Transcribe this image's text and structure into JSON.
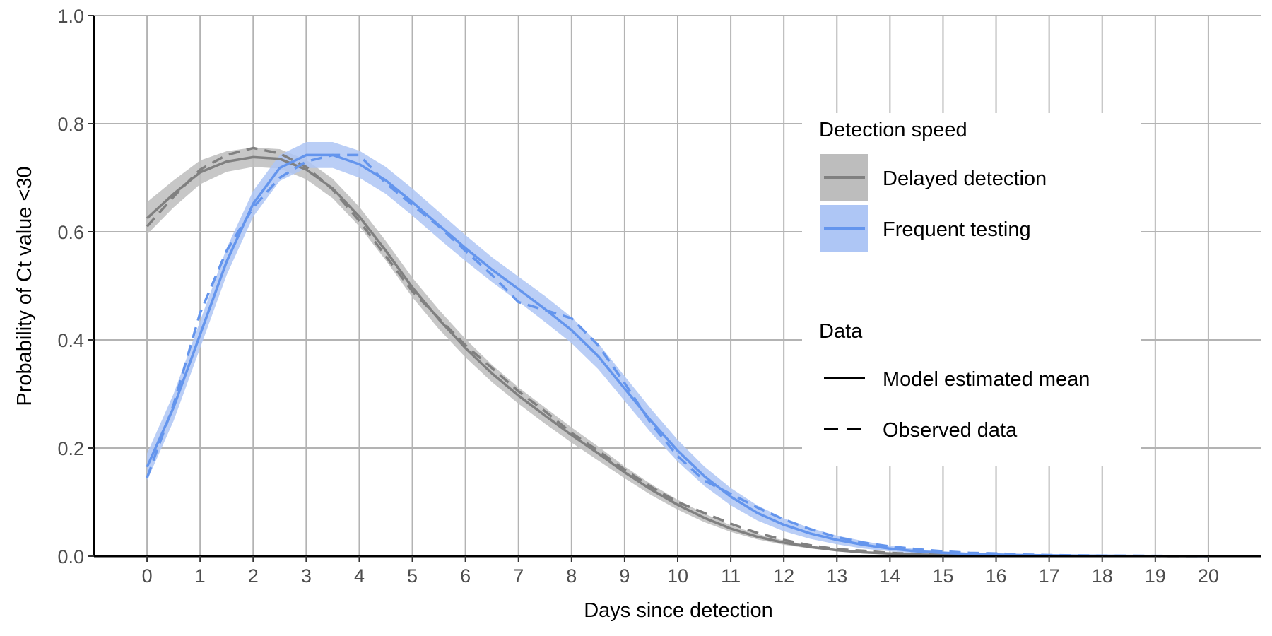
{
  "chart_data": {
    "type": "line",
    "xlabel": "Days since detection",
    "ylabel": "Probability of Ct value <30",
    "xlim": [
      -1,
      21
    ],
    "ylim": [
      0,
      1.0
    ],
    "x_ticks": [
      0,
      1,
      2,
      3,
      4,
      5,
      6,
      7,
      8,
      9,
      10,
      11,
      12,
      13,
      14,
      15,
      16,
      17,
      18,
      19,
      20
    ],
    "x_tick_labels": [
      "0",
      "1",
      "2",
      "3",
      "4",
      "5",
      "6",
      "7",
      "8",
      "9",
      "10",
      "11",
      "12",
      "13",
      "14",
      "15",
      "16",
      "17",
      "18",
      "19",
      "20"
    ],
    "y_ticks": [
      0,
      0.2,
      0.4,
      0.6,
      0.8,
      1.0
    ],
    "y_tick_labels": [
      "0.0",
      "0.2",
      "0.4",
      "0.6",
      "0.8",
      "1.0"
    ],
    "grid": true,
    "legend_position": "right",
    "x": [
      0,
      0.5,
      1,
      1.5,
      2,
      2.5,
      3,
      3.5,
      4,
      4.5,
      5,
      5.5,
      6,
      6.5,
      7,
      7.5,
      8,
      8.5,
      9,
      9.5,
      10,
      10.5,
      11,
      11.5,
      12,
      12.5,
      13,
      13.5,
      14,
      14.5,
      15,
      15.5,
      16,
      16.5,
      17,
      17.5,
      18,
      18.5,
      19,
      19.5,
      20
    ],
    "series": [
      {
        "name": "Delayed detection",
        "color": "#808080",
        "band_color": "#bdbdbd",
        "mean": [
          0.625,
          0.67,
          0.71,
          0.73,
          0.738,
          0.735,
          0.715,
          0.68,
          0.628,
          0.565,
          0.497,
          0.438,
          0.385,
          0.338,
          0.297,
          0.26,
          0.224,
          0.19,
          0.155,
          0.123,
          0.095,
          0.071,
          0.051,
          0.036,
          0.025,
          0.017,
          0.011,
          0.007,
          0.005,
          0.003,
          0.002,
          0.0015,
          0.001,
          0.0008,
          0.0006,
          0.0004,
          0.0003,
          0.0002,
          0.0002,
          0.0001,
          0.0001
        ],
        "lower": [
          0.595,
          0.645,
          0.688,
          0.711,
          0.72,
          0.717,
          0.697,
          0.662,
          0.61,
          0.547,
          0.479,
          0.42,
          0.368,
          0.322,
          0.282,
          0.245,
          0.21,
          0.177,
          0.144,
          0.113,
          0.086,
          0.063,
          0.045,
          0.031,
          0.021,
          0.014,
          0.009,
          0.005,
          0.003,
          0.002,
          0.001,
          0.001,
          0.0005,
          0.0003,
          0.0002,
          0.0001,
          0.0001,
          0.0,
          0.0,
          0.0,
          0.0
        ],
        "upper": [
          0.655,
          0.695,
          0.732,
          0.749,
          0.756,
          0.753,
          0.733,
          0.698,
          0.646,
          0.583,
          0.515,
          0.456,
          0.402,
          0.354,
          0.312,
          0.275,
          0.238,
          0.203,
          0.166,
          0.133,
          0.104,
          0.079,
          0.057,
          0.041,
          0.029,
          0.02,
          0.013,
          0.009,
          0.006,
          0.004,
          0.003,
          0.002,
          0.0015,
          0.0012,
          0.001,
          0.0007,
          0.0005,
          0.0004,
          0.0003,
          0.0002,
          0.0002
        ],
        "observed": [
          0.61,
          0.665,
          0.715,
          0.742,
          0.755,
          0.745,
          0.72,
          0.678,
          0.62,
          0.555,
          0.49,
          0.44,
          0.39,
          0.348,
          0.305,
          0.268,
          0.228,
          0.195,
          0.16,
          0.128,
          0.1,
          0.08,
          0.06,
          0.043,
          0.03,
          0.02,
          0.013,
          0.01,
          0.006,
          0.004,
          0.003,
          0.002,
          0.002,
          0.001,
          0.001,
          0.0008,
          0.0005,
          0.0003,
          0.0002,
          0.0001,
          0.0001
        ]
      },
      {
        "name": "Frequent testing",
        "color": "#6495ED",
        "band_color": "#aec6f5",
        "mean": [
          0.165,
          0.275,
          0.41,
          0.545,
          0.652,
          0.718,
          0.742,
          0.742,
          0.725,
          0.695,
          0.655,
          0.612,
          0.57,
          0.53,
          0.494,
          0.457,
          0.418,
          0.37,
          0.31,
          0.25,
          0.195,
          0.148,
          0.11,
          0.08,
          0.058,
          0.042,
          0.03,
          0.021,
          0.014,
          0.009,
          0.006,
          0.004,
          0.003,
          0.002,
          0.0015,
          0.001,
          0.0008,
          0.0005,
          0.0003,
          0.0002,
          0.0001
        ],
        "lower": [
          0.14,
          0.25,
          0.385,
          0.52,
          0.628,
          0.694,
          0.718,
          0.718,
          0.7,
          0.67,
          0.63,
          0.587,
          0.546,
          0.507,
          0.471,
          0.433,
          0.394,
          0.346,
          0.287,
          0.228,
          0.175,
          0.13,
          0.094,
          0.066,
          0.046,
          0.032,
          0.022,
          0.014,
          0.009,
          0.005,
          0.003,
          0.002,
          0.001,
          0.001,
          0.0005,
          0.0003,
          0.0002,
          0.0001,
          0.0,
          0.0,
          0.0
        ],
        "upper": [
          0.19,
          0.3,
          0.435,
          0.57,
          0.676,
          0.742,
          0.766,
          0.766,
          0.75,
          0.72,
          0.68,
          0.637,
          0.594,
          0.553,
          0.517,
          0.481,
          0.442,
          0.394,
          0.333,
          0.272,
          0.215,
          0.166,
          0.126,
          0.094,
          0.07,
          0.052,
          0.038,
          0.028,
          0.019,
          0.013,
          0.009,
          0.006,
          0.005,
          0.003,
          0.0025,
          0.002,
          0.0015,
          0.001,
          0.0008,
          0.0005,
          0.0003
        ],
        "observed": [
          0.145,
          0.28,
          0.45,
          0.565,
          0.645,
          0.7,
          0.73,
          0.742,
          0.742,
          0.69,
          0.65,
          0.61,
          0.565,
          0.52,
          0.47,
          0.455,
          0.44,
          0.39,
          0.32,
          0.245,
          0.185,
          0.14,
          0.115,
          0.09,
          0.068,
          0.05,
          0.035,
          0.025,
          0.018,
          0.013,
          0.009,
          0.006,
          0.005,
          0.003,
          0.002,
          0.0015,
          0.001,
          0.0008,
          0.0005,
          0.0003,
          0.0002
        ]
      }
    ],
    "legend": {
      "color_title": "Detection speed",
      "color_items": [
        "Delayed detection",
        "Frequent testing"
      ],
      "linetype_title": "Data",
      "linetype_items": [
        "Model estimated mean",
        "Observed data"
      ]
    }
  }
}
